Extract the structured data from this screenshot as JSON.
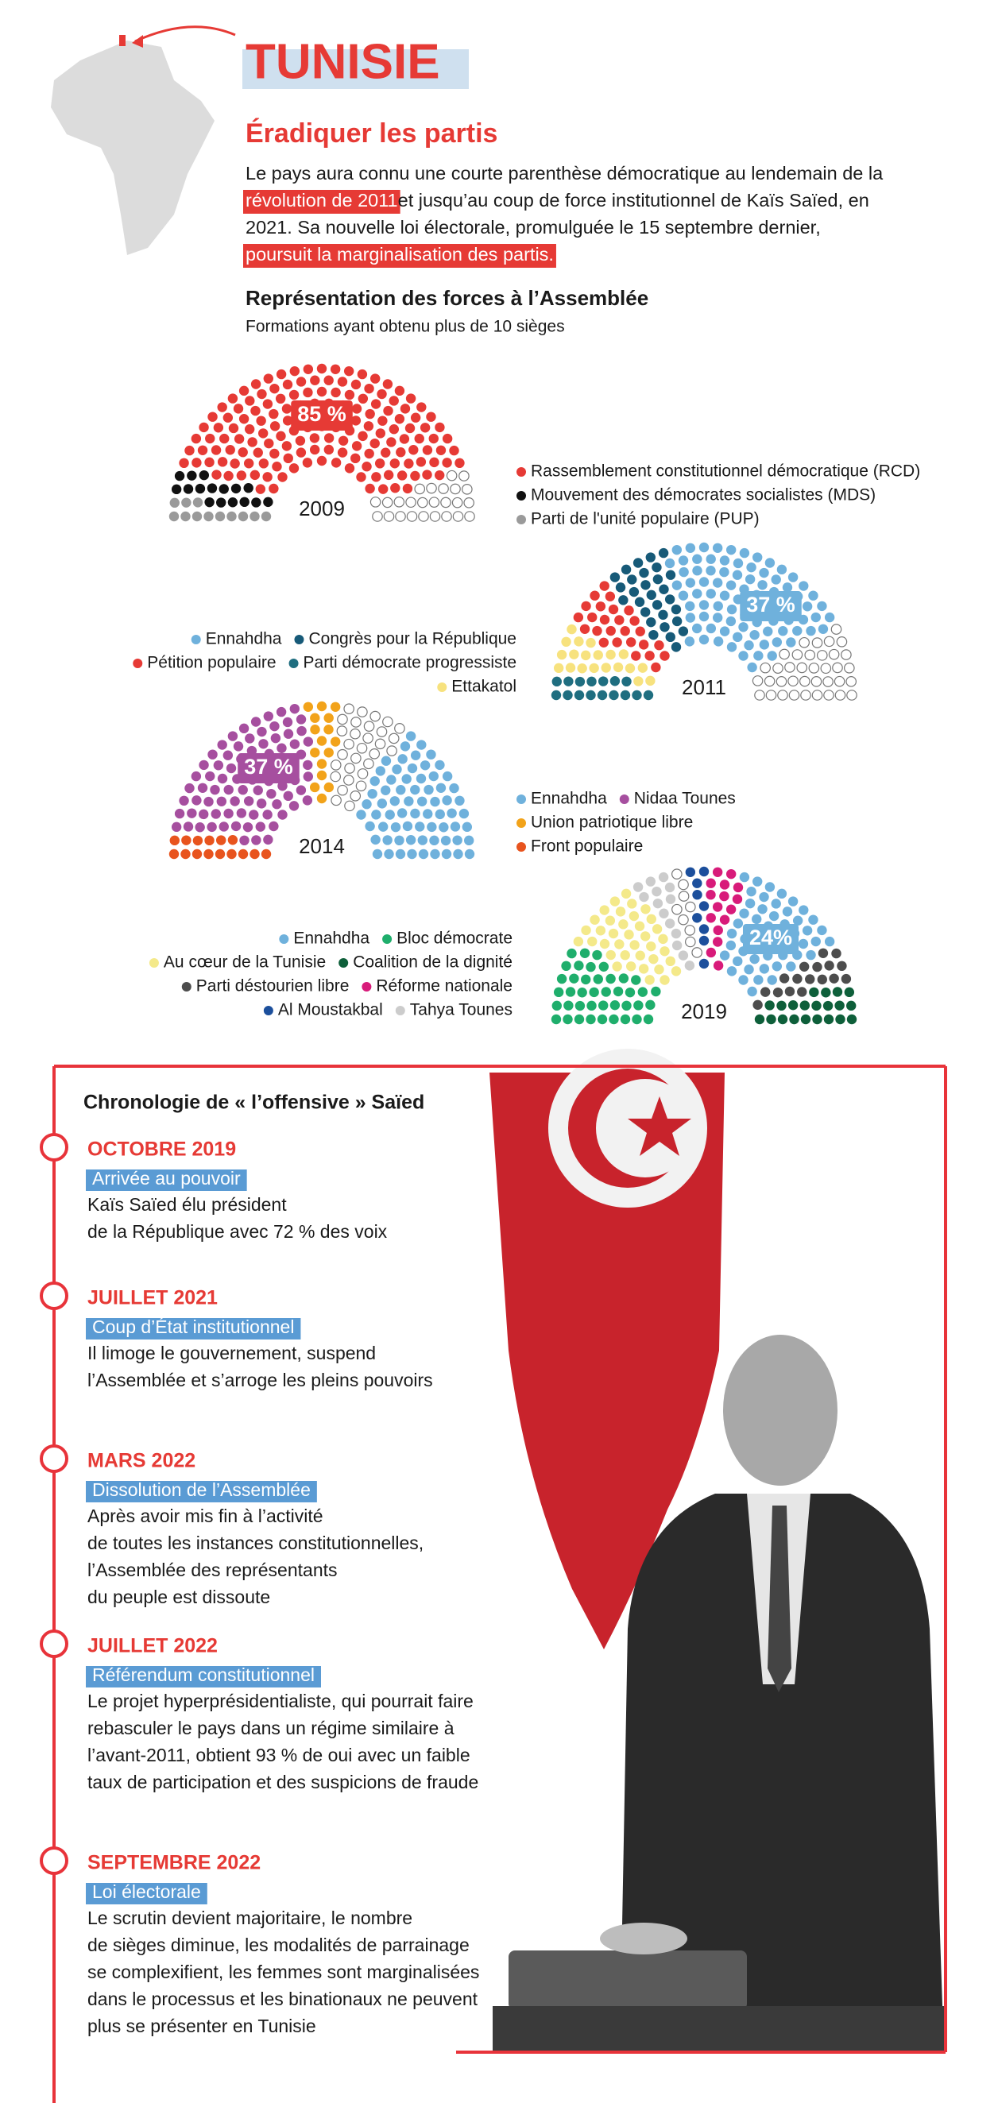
{
  "header": {
    "title": "TUNISIE",
    "subtitle": "Éradiquer les partis"
  },
  "intro": {
    "lines": [
      [
        {
          "text": "Le pays aura connu une courte parenthèse démocratique au lendemain de la",
          "highlight": false
        }
      ],
      [
        {
          "text": "révolution de 2011",
          "highlight": true
        },
        {
          "text": " et jusqu’au coup de force institutionnel de Kaïs Saïed, en",
          "highlight": false
        }
      ],
      [
        {
          "text": "2021. Sa nouvelle loi électorale, promulguée le 15 septembre dernier,",
          "highlight": false
        }
      ],
      [
        {
          "text": "poursuit la marginalisation des partis.",
          "highlight": true
        }
      ]
    ]
  },
  "section": {
    "title": "Représentation des forces à l’Assemblée",
    "subtitle": "Formations ayant obtenu plus de 10 sièges"
  },
  "chart_data": [
    {
      "type": "parliament",
      "label": "2009",
      "annotation": "85 %",
      "annotation_color": "#e63a35",
      "series": [
        {
          "name": "Parti de l'unité populaire (PUP)",
          "color": "#9a9a9a",
          "values": [
            12
          ]
        },
        {
          "name": "Mouvement des démocrates socialistes (MDS)",
          "color": "#111111",
          "values": [
            16
          ]
        },
        {
          "name": "Rassemblement constitutionnel démocratique (RCD)",
          "color": "#e63a35",
          "values": [
            161
          ]
        },
        {
          "color": "#ffffff",
          "values": [
            25
          ]
        }
      ]
    },
    {
      "type": "parliament",
      "label": "2011",
      "annotation": "37 %",
      "annotation_color": "#6fb1dc",
      "series": [
        {
          "name": "Parti démocrate progressiste",
          "color": "#1f6e80",
          "values": [
            16
          ]
        },
        {
          "name": "Ettakatol",
          "color": "#f7e27e",
          "values": [
            20
          ]
        },
        {
          "name": "Pétition populaire",
          "color": "#e63a35",
          "values": [
            26
          ]
        },
        {
          "name": "Congrès pour la République",
          "color": "#175a78",
          "values": [
            29
          ]
        },
        {
          "name": "Ennahdha",
          "color": "#6fb1dc",
          "values": [
            89
          ]
        },
        {
          "color": "#ffffff",
          "values": [
            37
          ]
        }
      ]
    },
    {
      "type": "parliament",
      "label": "2014",
      "annotation": "37 %",
      "annotation_color": "#a64f9f",
      "series": [
        {
          "name": "Front populaire",
          "color": "#e8541e",
          "values": [
            15
          ]
        },
        {
          "name": "Nidaa Tounes",
          "color": "#a64f9f",
          "values": [
            86
          ]
        },
        {
          "name": "Union patriotique libre",
          "color": "#f2a31a",
          "values": [
            16
          ]
        },
        {
          "color": "#ffffff",
          "values": [
            31
          ]
        },
        {
          "name": "Ennahdha",
          "color": "#6fb1dc",
          "values": [
            69
          ]
        }
      ]
    },
    {
      "type": "parliament",
      "label": "2019",
      "annotation": "24%",
      "annotation_color": "#6fb1dc",
      "series": [
        {
          "name": "Bloc démocrate",
          "color": "#1fae6c",
          "values": [
            41
          ]
        },
        {
          "name": "Au cœur de la Tunisie",
          "color": "#f4e98a",
          "values": [
            38
          ]
        },
        {
          "name": "Tahya Tounes",
          "color": "#cccccc",
          "values": [
            14
          ]
        },
        {
          "color": "#ffffff",
          "values": [
            9
          ]
        },
        {
          "name": "Al Moustakbal",
          "color": "#1c4f9c",
          "values": [
            9
          ]
        },
        {
          "name": "Réforme nationale",
          "color": "#d81b7a",
          "values": [
            16
          ]
        },
        {
          "name": "Ennahdha",
          "color": "#6fb1dc",
          "values": [
            52
          ]
        },
        {
          "name": "Parti déstourien libre",
          "color": "#4d4d4d",
          "values": [
            17
          ]
        },
        {
          "name": "Coalition de la dignité",
          "color": "#0e5f3a",
          "values": [
            21
          ]
        }
      ]
    }
  ],
  "timeline": {
    "title": "Chronologie de « l’offensive » Saïed",
    "events": [
      {
        "date": "OCTOBRE 2019",
        "label": "Arrivée au pouvoir",
        "text": [
          "Kaïs Saïed élu président",
          "de la République avec 72 % des voix"
        ]
      },
      {
        "date": "JUILLET 2021",
        "label": "Coup d’État institutionnel",
        "text": [
          "Il limoge le gouvernement, suspend",
          "l’Assemblée et s’arroge les pleins pouvoirs"
        ]
      },
      {
        "date": "MARS 2022",
        "label": "Dissolution de l’Assemblée",
        "text": [
          "Après avoir mis fin à l’activité",
          "de toutes les instances constitutionnelles,",
          "l’Assemblée des représentants",
          "du peuple est dissoute"
        ]
      },
      {
        "date": "JUILLET 2022",
        "label": "Référendum constitutionnel",
        "text": [
          "Le projet hyperprésidentialiste, qui pourrait faire",
          "rebasculer le pays dans un régime similaire à",
          "l’avant-2011, obtient 93 % de oui avec un faible",
          "taux de participation et des suspicions de fraude"
        ]
      },
      {
        "date": "SEPTEMBRE 2022",
        "label": "Loi électorale",
        "text": [
          "Le scrutin devient majoritaire, le nombre",
          "de sièges diminue, les modalités de parrainage",
          "se complexifient, les femmes sont marginalisées",
          "dans le processus et les binationaux ne peuvent",
          "plus se présenter en Tunisie"
        ]
      }
    ]
  }
}
